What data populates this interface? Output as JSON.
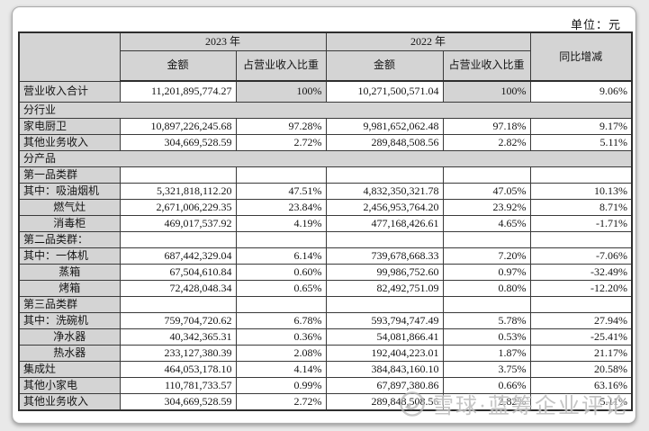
{
  "meta": {
    "unit_label": "单位：元"
  },
  "colors": {
    "header_cell_bg": "#d4d4d4",
    "table_border": "#2e2e2e",
    "panel_bg": "#ffffff",
    "page_bg": "#e9e9e9",
    "text": "#141414",
    "watermark": "#b7b7b7"
  },
  "table": {
    "header": {
      "col_2023": "2023 年",
      "col_2022": "2022 年",
      "amount": "金额",
      "share": "占营业收入比重",
      "yoy": "同比增减"
    },
    "rows": [
      {
        "kind": "data",
        "total": true,
        "label": "营业收入合计",
        "pct_gray": true,
        "cells": [
          "11,201,895,774.27",
          "100%",
          "10,271,500,571.04",
          "100%",
          "9.06%"
        ]
      },
      {
        "kind": "section",
        "label": "分行业"
      },
      {
        "kind": "data",
        "label": "家电厨卫",
        "cells": [
          "10,897,226,245.68",
          "97.28%",
          "9,981,652,062.48",
          "97.18%",
          "9.17%"
        ]
      },
      {
        "kind": "data",
        "label": "其他业务收入",
        "cells": [
          "304,669,528.59",
          "2.72%",
          "289,848,508.56",
          "2.82%",
          "5.11%"
        ]
      },
      {
        "kind": "section",
        "label": "分产品"
      },
      {
        "kind": "group",
        "label": "第一品类群"
      },
      {
        "kind": "data",
        "label": "其中：吸油烟机",
        "cells": [
          "5,321,818,112.20",
          "47.51%",
          "4,832,350,321.78",
          "47.05%",
          "10.13%"
        ]
      },
      {
        "kind": "data",
        "label": "燃气灶",
        "label_align": "center",
        "cells": [
          "2,671,006,229.35",
          "23.84%",
          "2,456,953,764.20",
          "23.92%",
          "8.71%"
        ]
      },
      {
        "kind": "data",
        "label": "消毒柜",
        "label_align": "center",
        "cells": [
          "469,017,537.92",
          "4.19%",
          "477,168,426.61",
          "4.65%",
          "-1.71%"
        ]
      },
      {
        "kind": "group",
        "label": "第二品类群："
      },
      {
        "kind": "data",
        "label": "其中：一体机",
        "cells": [
          "687,442,329.04",
          "6.14%",
          "739,678,668.33",
          "7.20%",
          "-7.06%"
        ]
      },
      {
        "kind": "data",
        "label": "蒸箱",
        "label_align": "center",
        "cells": [
          "67,504,610.84",
          "0.60%",
          "99,986,752.60",
          "0.97%",
          "-32.49%"
        ]
      },
      {
        "kind": "data",
        "label": "烤箱",
        "label_align": "center",
        "cells": [
          "72,428,048.34",
          "0.65%",
          "82,492,751.09",
          "0.80%",
          "-12.20%"
        ]
      },
      {
        "kind": "group",
        "label": "第三品类群"
      },
      {
        "kind": "data",
        "label": "其中：洗碗机",
        "cells": [
          "759,704,720.62",
          "6.78%",
          "593,794,747.49",
          "5.78%",
          "27.94%"
        ]
      },
      {
        "kind": "data",
        "label": "净水器",
        "label_align": "center",
        "cells": [
          "40,342,365.31",
          "0.36%",
          "54,081,866.41",
          "0.53%",
          "-25.41%"
        ]
      },
      {
        "kind": "data",
        "label": "热水器",
        "label_align": "center",
        "cells": [
          "233,127,380.39",
          "2.08%",
          "192,404,223.01",
          "1.87%",
          "21.17%"
        ]
      },
      {
        "kind": "data",
        "label": "集成灶",
        "cells": [
          "464,053,178.10",
          "4.14%",
          "384,843,160.10",
          "3.75%",
          "20.58%"
        ]
      },
      {
        "kind": "data",
        "label": "其他小家电",
        "cells": [
          "110,781,733.57",
          "0.99%",
          "67,897,380.86",
          "0.66%",
          "63.16%"
        ]
      },
      {
        "kind": "data",
        "label": "其他业务收入",
        "cells": [
          "304,669,528.59",
          "2.72%",
          "289,848,508.56",
          "2.82%",
          "5.11%"
        ]
      }
    ]
  },
  "watermark": {
    "text": "雪球·蓝筹企业评论"
  }
}
